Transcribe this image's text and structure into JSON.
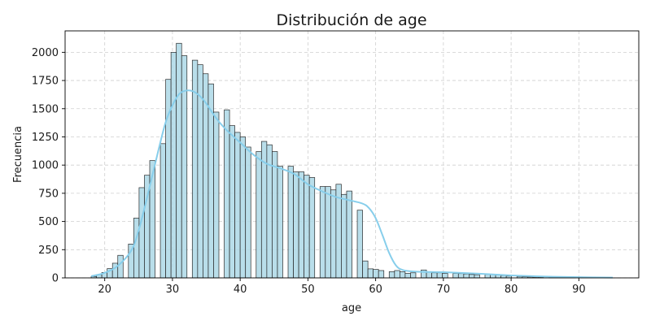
{
  "chart_data": {
    "type": "bar",
    "title": "Distribución de age",
    "xlabel": "age",
    "ylabel": "Frecuencia",
    "xlim": [
      14.15,
      98.85
    ],
    "ylim": [
      0,
      2190
    ],
    "xticks": [
      20,
      30,
      40,
      50,
      60,
      70,
      80,
      90
    ],
    "yticks": [
      0,
      250,
      500,
      750,
      1000,
      1250,
      1500,
      1750,
      2000
    ],
    "grid": true,
    "bin_start": 18,
    "bin_width": 0.7857,
    "counts": [
      12,
      28,
      48,
      82,
      130,
      200,
      0,
      300,
      530,
      800,
      910,
      1040,
      0,
      1190,
      1760,
      2000,
      2080,
      1970,
      0,
      1930,
      1890,
      1810,
      1720,
      1470,
      0,
      1490,
      1350,
      1290,
      1250,
      1160,
      0,
      1120,
      1210,
      1180,
      1120,
      990,
      0,
      990,
      940,
      940,
      910,
      890,
      0,
      810,
      810,
      780,
      830,
      740,
      770,
      0,
      600,
      150,
      80,
      75,
      65,
      0,
      55,
      65,
      55,
      40,
      45,
      0,
      70,
      55,
      45,
      45,
      40,
      0,
      40,
      38,
      35,
      30,
      28,
      0,
      30,
      28,
      25,
      20,
      16,
      0,
      12,
      10,
      8,
      7,
      6,
      0,
      5,
      4,
      4,
      3,
      3,
      0,
      3,
      3,
      2,
      2
    ],
    "kde": {
      "x": [
        18,
        20,
        22,
        24,
        25,
        26,
        27,
        28,
        29,
        30,
        31,
        32,
        33,
        34,
        35,
        36,
        37,
        38,
        40,
        42,
        44,
        46,
        48,
        50,
        52,
        54,
        56,
        58,
        59,
        60,
        61,
        62,
        63,
        64,
        66,
        70,
        75,
        80,
        85,
        90,
        95
      ],
      "y": [
        15,
        45,
        110,
        250,
        420,
        650,
        900,
        1150,
        1380,
        1530,
        1630,
        1660,
        1655,
        1615,
        1545,
        1455,
        1375,
        1310,
        1200,
        1090,
        1010,
        970,
        920,
        830,
        770,
        720,
        690,
        660,
        620,
        530,
        380,
        220,
        110,
        70,
        55,
        50,
        38,
        22,
        12,
        6,
        3
      ]
    }
  }
}
